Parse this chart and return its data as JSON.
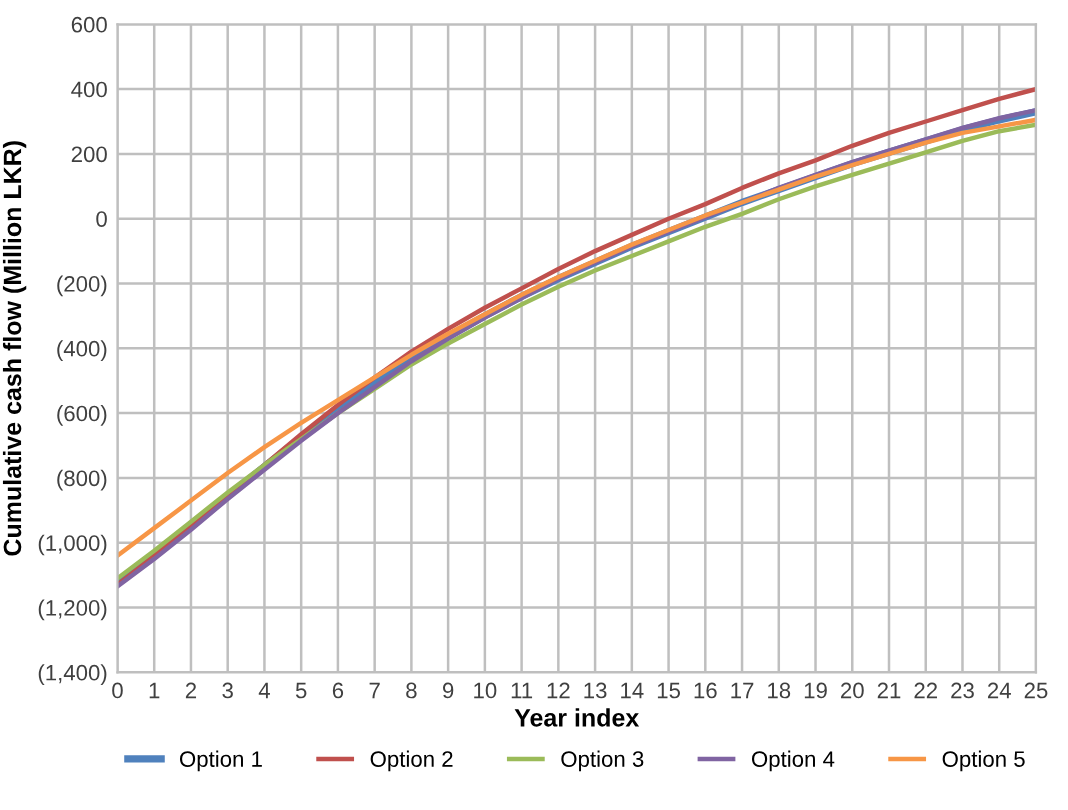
{
  "chart_data": {
    "type": "line",
    "xlabel": "Year index",
    "ylabel": "Cumulative cash flow (Million LKR)",
    "x": [
      0,
      1,
      2,
      3,
      4,
      5,
      6,
      7,
      8,
      9,
      10,
      11,
      12,
      13,
      14,
      15,
      16,
      17,
      18,
      19,
      20,
      21,
      22,
      23,
      24,
      25
    ],
    "xlim": [
      0,
      25
    ],
    "xticks": [
      0,
      1,
      2,
      3,
      4,
      5,
      6,
      7,
      8,
      9,
      10,
      11,
      12,
      13,
      14,
      15,
      16,
      17,
      18,
      19,
      20,
      21,
      22,
      23,
      24,
      25
    ],
    "ylim": [
      -1400,
      600
    ],
    "yticks": [
      {
        "value": -1400,
        "label": "(1,400)"
      },
      {
        "value": -1200,
        "label": "(1,200)"
      },
      {
        "value": -1000,
        "label": "(1,000)"
      },
      {
        "value": -800,
        "label": "(800)"
      },
      {
        "value": -600,
        "label": "(600)"
      },
      {
        "value": -400,
        "label": "(400)"
      },
      {
        "value": -200,
        "label": "(200)"
      },
      0,
      200,
      400,
      600
    ],
    "grid": true,
    "legend": "bottom",
    "marker": "none",
    "line_style": "solid",
    "series": [
      {
        "name": "Option 1",
        "color": "#4f81bd",
        "values": [
          -1120,
          -1035,
          -945,
          -855,
          -765,
          -675,
          -590,
          -510,
          -435,
          -365,
          -300,
          -240,
          -185,
          -135,
          -85,
          -40,
          5,
          50,
          90,
          130,
          170,
          205,
          240,
          275,
          305,
          330
        ]
      },
      {
        "name": "Option 2",
        "color": "#c0504d",
        "values": [
          -1130,
          -1040,
          -950,
          -855,
          -760,
          -665,
          -575,
          -490,
          -410,
          -340,
          -275,
          -215,
          -155,
          -100,
          -50,
          0,
          45,
          95,
          140,
          180,
          225,
          265,
          300,
          335,
          370,
          400
        ]
      },
      {
        "name": "Option 3",
        "color": "#9bbb59",
        "values": [
          -1110,
          -1025,
          -935,
          -845,
          -760,
          -680,
          -600,
          -525,
          -450,
          -385,
          -325,
          -265,
          -210,
          -160,
          -115,
          -70,
          -25,
          15,
          60,
          100,
          135,
          170,
          205,
          240,
          270,
          290
        ]
      },
      {
        "name": "Option 4",
        "color": "#8064a2",
        "values": [
          -1135,
          -1050,
          -960,
          -865,
          -775,
          -685,
          -600,
          -520,
          -440,
          -370,
          -305,
          -245,
          -185,
          -135,
          -85,
          -40,
          5,
          50,
          95,
          135,
          175,
          210,
          245,
          280,
          310,
          335
        ]
      },
      {
        "name": "Option 5",
        "color": "#f79646",
        "values": [
          -1040,
          -955,
          -870,
          -785,
          -705,
          -630,
          -560,
          -490,
          -420,
          -355,
          -295,
          -235,
          -180,
          -130,
          -80,
          -35,
          10,
          50,
          90,
          130,
          165,
          200,
          235,
          265,
          285,
          305
        ]
      }
    ]
  }
}
